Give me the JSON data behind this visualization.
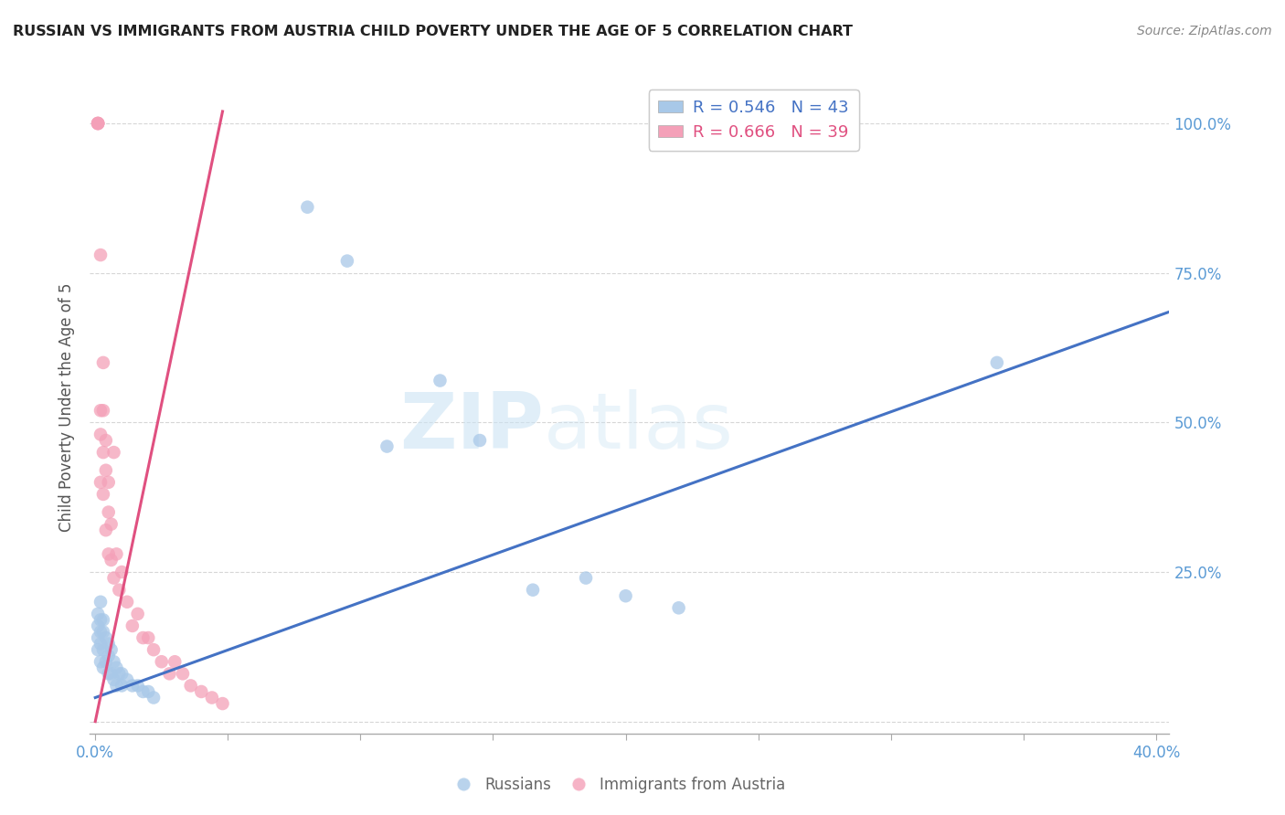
{
  "title": "RUSSIAN VS IMMIGRANTS FROM AUSTRIA CHILD POVERTY UNDER THE AGE OF 5 CORRELATION CHART",
  "source": "Source: ZipAtlas.com",
  "ylabel": "Child Poverty Under the Age of 5",
  "xlim": [
    -0.002,
    0.405
  ],
  "ylim": [
    -0.02,
    1.07
  ],
  "xticks": [
    0.0,
    0.05,
    0.1,
    0.15,
    0.2,
    0.25,
    0.3,
    0.35,
    0.4
  ],
  "xticklabels": [
    "0.0%",
    "",
    "",
    "",
    "",
    "",
    "",
    "",
    "40.0%"
  ],
  "yticks": [
    0.0,
    0.25,
    0.5,
    0.75,
    1.0
  ],
  "yticklabels": [
    "",
    "25.0%",
    "50.0%",
    "75.0%",
    "100.0%"
  ],
  "blue_R": 0.546,
  "blue_N": 43,
  "pink_R": 0.666,
  "pink_N": 39,
  "blue_color": "#a8c8e8",
  "pink_color": "#f4a0b8",
  "blue_line_color": "#4472c4",
  "pink_line_color": "#e05080",
  "watermark_zip": "ZIP",
  "watermark_atlas": "atlas",
  "blue_scatter_x": [
    0.001,
    0.001,
    0.001,
    0.001,
    0.002,
    0.002,
    0.002,
    0.002,
    0.002,
    0.003,
    0.003,
    0.003,
    0.003,
    0.004,
    0.004,
    0.005,
    0.005,
    0.005,
    0.006,
    0.006,
    0.007,
    0.007,
    0.008,
    0.008,
    0.009,
    0.01,
    0.01,
    0.012,
    0.014,
    0.016,
    0.018,
    0.02,
    0.022,
    0.08,
    0.095,
    0.11,
    0.13,
    0.145,
    0.165,
    0.185,
    0.2,
    0.22,
    0.34
  ],
  "blue_scatter_y": [
    0.18,
    0.16,
    0.14,
    0.12,
    0.2,
    0.17,
    0.15,
    0.13,
    0.1,
    0.17,
    0.15,
    0.12,
    0.09,
    0.14,
    0.1,
    0.13,
    0.11,
    0.08,
    0.12,
    0.08,
    0.1,
    0.07,
    0.09,
    0.06,
    0.08,
    0.08,
    0.06,
    0.07,
    0.06,
    0.06,
    0.05,
    0.05,
    0.04,
    0.86,
    0.77,
    0.46,
    0.57,
    0.47,
    0.22,
    0.24,
    0.21,
    0.19,
    0.6
  ],
  "pink_scatter_x": [
    0.001,
    0.001,
    0.001,
    0.001,
    0.002,
    0.002,
    0.002,
    0.002,
    0.003,
    0.003,
    0.003,
    0.003,
    0.004,
    0.004,
    0.004,
    0.005,
    0.005,
    0.005,
    0.006,
    0.006,
    0.007,
    0.007,
    0.008,
    0.009,
    0.01,
    0.012,
    0.014,
    0.016,
    0.018,
    0.02,
    0.022,
    0.025,
    0.028,
    0.03,
    0.033,
    0.036,
    0.04,
    0.044,
    0.048
  ],
  "pink_scatter_y": [
    1.0,
    1.0,
    1.0,
    1.0,
    0.78,
    0.52,
    0.48,
    0.4,
    0.6,
    0.52,
    0.45,
    0.38,
    0.47,
    0.42,
    0.32,
    0.4,
    0.35,
    0.28,
    0.33,
    0.27,
    0.45,
    0.24,
    0.28,
    0.22,
    0.25,
    0.2,
    0.16,
    0.18,
    0.14,
    0.14,
    0.12,
    0.1,
    0.08,
    0.1,
    0.08,
    0.06,
    0.05,
    0.04,
    0.03
  ],
  "blue_line_x": [
    0.0,
    0.405
  ],
  "blue_line_y": [
    0.04,
    0.685
  ],
  "pink_line_x": [
    0.0,
    0.048
  ],
  "pink_line_y": [
    0.0,
    1.02
  ]
}
